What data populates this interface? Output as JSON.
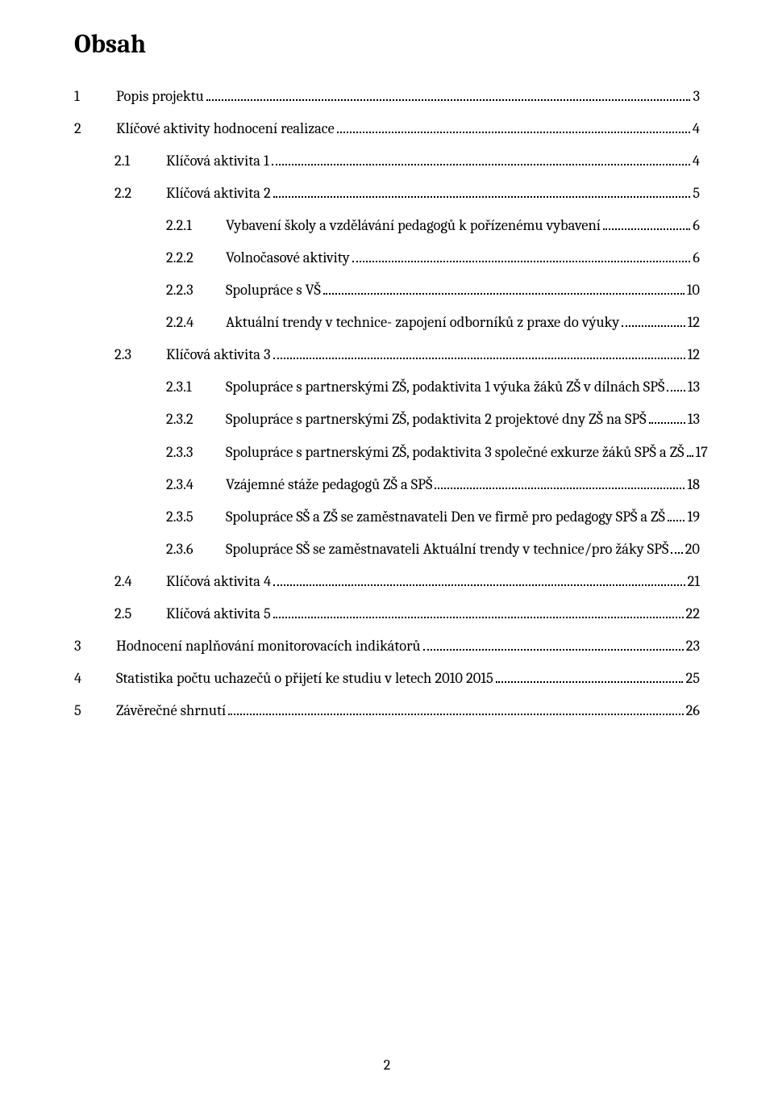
{
  "title": "Obsah",
  "page_number": "2",
  "font": {
    "title_size_pt": 24,
    "body_size_pt": 14,
    "family": "Cambria",
    "title_weight": 700,
    "body_weight": 400
  },
  "colors": {
    "text": "#000000",
    "background": "#ffffff",
    "leader": "#000000"
  },
  "toc": [
    {
      "level": 0,
      "num": "1",
      "label": "Popis projektu",
      "page": "3"
    },
    {
      "level": 0,
      "num": "2",
      "label": "Klíčové aktivity hodnocení realizace",
      "page": "4"
    },
    {
      "level": 1,
      "num": "2.1",
      "label": "Klíčová aktivita 1",
      "page": "4"
    },
    {
      "level": 1,
      "num": "2.2",
      "label": "Klíčová aktivita 2",
      "page": "5"
    },
    {
      "level": 2,
      "num": "2.2.1",
      "label": "Vybavení školy a vzdělávání pedagogů k pořízenému vybavení",
      "page": "6"
    },
    {
      "level": 2,
      "num": "2.2.2",
      "label": "Volnočasové aktivity",
      "page": "6"
    },
    {
      "level": 2,
      "num": "2.2.3",
      "label": "Spolupráce s VŠ",
      "page": "10"
    },
    {
      "level": 2,
      "num": "2.2.4",
      "label": "Aktuální trendy v technice- zapojení odborníků z praxe do výuky",
      "page": "12"
    },
    {
      "level": 1,
      "num": "2.3",
      "label": "Klíčová aktivita 3",
      "page": "12"
    },
    {
      "level": 2,
      "num": "2.3.1",
      "label": "Spolupráce s partnerskými ZŠ, podaktivita 1 výuka žáků ZŠ v dílnách SPŠ",
      "page": "13"
    },
    {
      "level": 2,
      "num": "2.3.2",
      "label": "Spolupráce s partnerskými ZŠ, podaktivita 2 projektové dny ZŠ na SPŠ",
      "page": "13"
    },
    {
      "level": 2,
      "num": "2.3.3",
      "label": "Spolupráce s partnerskými ZŠ, podaktivita 3 společné exkurze žáků SPŠ a ZŠ",
      "page": "17"
    },
    {
      "level": 2,
      "num": "2.3.4",
      "label": "Vzájemné stáže pedagogů ZŠ a SPŠ",
      "page": "18"
    },
    {
      "level": 2,
      "num": "2.3.5",
      "label": "Spolupráce SŠ a ZŠ se zaměstnavateli Den ve firmě pro pedagogy SPŠ a ZŠ",
      "page": "19"
    },
    {
      "level": 2,
      "num": "2.3.6",
      "label": "Spolupráce SŠ se zaměstnavateli Aktuální trendy v technice/pro žáky SPŠ",
      "page": "20"
    },
    {
      "level": 1,
      "num": "2.4",
      "label": "Klíčová aktivita 4",
      "page": "21"
    },
    {
      "level": 1,
      "num": "2.5",
      "label": "Klíčová aktivita 5",
      "page": "22"
    },
    {
      "level": 0,
      "num": "3",
      "label": "Hodnocení naplňování monitorovacích indikátorů",
      "page": "23"
    },
    {
      "level": 0,
      "num": "4",
      "label": "Statistika počtu uchazečů o přijetí ke studiu v letech 2010 2015",
      "page": "25"
    },
    {
      "level": 0,
      "num": "5",
      "label": "Závěrečné shrnutí",
      "page": "26"
    }
  ]
}
